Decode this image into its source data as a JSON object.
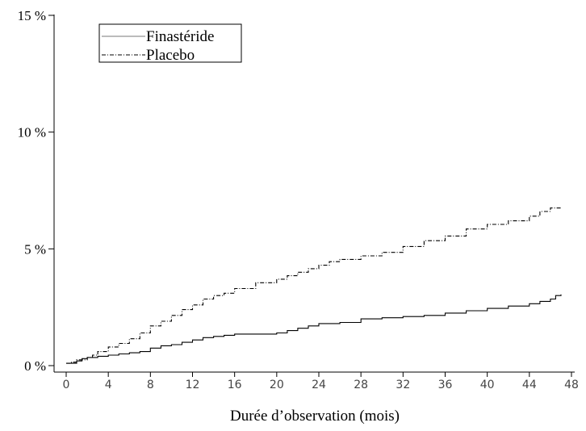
{
  "chart_data": {
    "type": "line",
    "title": "",
    "xlabel": "Durée d’observation (mois)",
    "ylabel": "",
    "xlim": [
      0,
      48
    ],
    "ylim": [
      0,
      15
    ],
    "xticks": [
      0,
      4,
      8,
      12,
      16,
      20,
      24,
      28,
      32,
      36,
      40,
      44,
      48
    ],
    "yticks": [
      {
        "value": 0,
        "label": "0 %"
      },
      {
        "value": 5,
        "label": "5 %"
      },
      {
        "value": 10,
        "label": "10 %"
      },
      {
        "value": 15,
        "label": "15 %"
      }
    ],
    "legend_position": "top-left",
    "grid": false,
    "series": [
      {
        "name": "Finastéride",
        "line_style": "solid",
        "color": "#000000",
        "x": [
          0,
          0.5,
          1,
          1.5,
          2,
          3,
          4,
          5,
          6,
          7,
          8,
          9,
          10,
          11,
          12,
          13,
          14,
          15,
          16,
          18,
          20,
          21,
          22,
          23,
          24,
          26,
          28,
          30,
          32,
          34,
          36,
          38,
          40,
          42,
          44,
          45,
          46,
          46.5,
          47
        ],
        "y": [
          0.1,
          0.1,
          0.2,
          0.3,
          0.35,
          0.4,
          0.45,
          0.5,
          0.55,
          0.6,
          0.75,
          0.85,
          0.9,
          1.0,
          1.1,
          1.2,
          1.25,
          1.3,
          1.35,
          1.35,
          1.4,
          1.5,
          1.6,
          1.7,
          1.8,
          1.85,
          2.0,
          2.05,
          2.1,
          2.15,
          2.25,
          2.35,
          2.45,
          2.55,
          2.65,
          2.75,
          2.85,
          3.0,
          3.05
        ]
      },
      {
        "name": "Placebo",
        "line_style": "dashed",
        "color": "#000000",
        "x": [
          0,
          0.5,
          1,
          2,
          2.5,
          3,
          4,
          5,
          6,
          7,
          8,
          9,
          10,
          11,
          12,
          13,
          14,
          15,
          16,
          18,
          20,
          21,
          22,
          23,
          24,
          25,
          26,
          28,
          30,
          32,
          34,
          36,
          38,
          40,
          42,
          44,
          45,
          46,
          47
        ],
        "y": [
          0.1,
          0.15,
          0.25,
          0.35,
          0.45,
          0.6,
          0.8,
          0.95,
          1.15,
          1.4,
          1.7,
          1.9,
          2.15,
          2.4,
          2.6,
          2.85,
          3.0,
          3.1,
          3.3,
          3.55,
          3.7,
          3.85,
          4.0,
          4.15,
          4.3,
          4.45,
          4.55,
          4.7,
          4.85,
          5.1,
          5.35,
          5.55,
          5.85,
          6.05,
          6.2,
          6.4,
          6.6,
          6.75,
          6.75
        ]
      }
    ]
  }
}
